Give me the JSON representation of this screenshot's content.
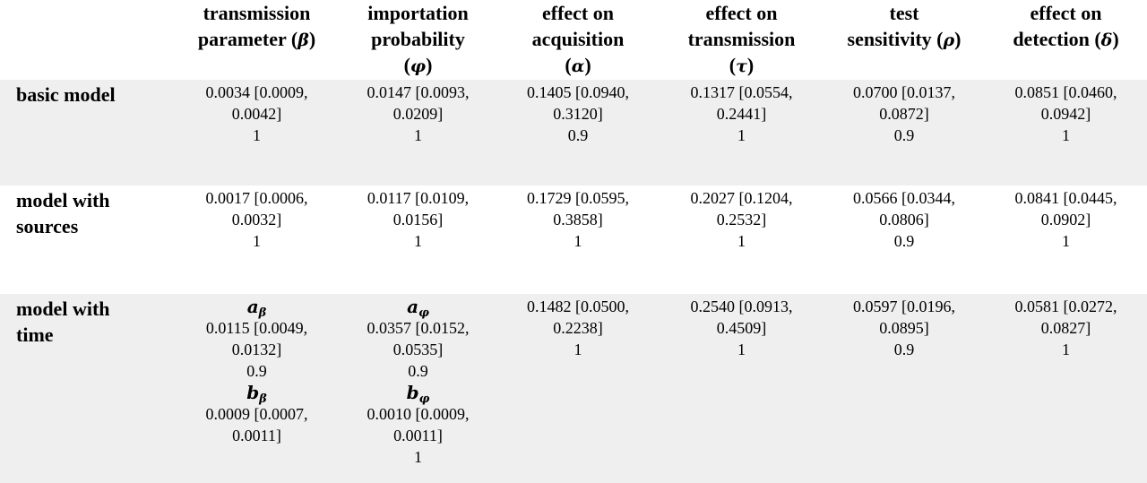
{
  "table": {
    "headers": [
      {
        "lines": [
          "transmission",
          "parameter ("
        ],
        "symbol": "β",
        "close": ")"
      },
      {
        "lines": [
          "importation",
          "probability"
        ],
        "symbol": "φ",
        "symbol_line": true
      },
      {
        "lines": [
          "effect on",
          "acquisition"
        ],
        "symbol": "α",
        "symbol_line": true
      },
      {
        "lines": [
          "effect on",
          "transmission"
        ],
        "symbol": "τ",
        "symbol_line": true
      },
      {
        "lines": [
          "test",
          "sensitivity ("
        ],
        "symbol": "ρ",
        "close": ")"
      },
      {
        "lines": [
          "effect on",
          "detection ("
        ],
        "symbol": "δ",
        "close": ")"
      }
    ],
    "rows": [
      {
        "label": [
          "basic model"
        ],
        "cells": [
          {
            "estimate": [
              "0.0034 [0.0009,",
              "0.0042]"
            ],
            "value": "1"
          },
          {
            "estimate": [
              "0.0147 [0.0093,",
              "0.0209]"
            ],
            "value": "1"
          },
          {
            "estimate": [
              "0.1405 [0.0940,",
              "0.3120]"
            ],
            "value": "0.9"
          },
          {
            "estimate": [
              "0.1317 [0.0554,",
              "0.2441]"
            ],
            "value": "1"
          },
          {
            "estimate": [
              "0.0700 [0.0137,",
              "0.0872]"
            ],
            "value": "0.9"
          },
          {
            "estimate": [
              "0.0851 [0.0460,",
              "0.0942]"
            ],
            "value": "1"
          }
        ]
      },
      {
        "label": [
          "model with",
          "sources"
        ],
        "cells": [
          {
            "estimate": [
              "0.0017 [0.0006,",
              "0.0032]"
            ],
            "value": "1"
          },
          {
            "estimate": [
              "0.0117 [0.0109,",
              "0.0156]"
            ],
            "value": "1"
          },
          {
            "estimate": [
              "0.1729 [0.0595,",
              "0.3858]"
            ],
            "value": "1"
          },
          {
            "estimate": [
              "0.2027 [0.1204,",
              "0.2532]"
            ],
            "value": "1"
          },
          {
            "estimate": [
              "0.0566 [0.0344,",
              "0.0806]"
            ],
            "value": "0.9"
          },
          {
            "estimate": [
              "0.0841 [0.0445,",
              "0.0902]"
            ],
            "value": "1"
          }
        ]
      },
      {
        "label": [
          "model with",
          "time"
        ],
        "time_cells": [
          {
            "a_base": "a",
            "a_sub": "β",
            "a_estimate": [
              "0.0115 [0.0049,",
              "0.0132]"
            ],
            "a_value": "0.9",
            "b_base": "b",
            "b_sub": "β",
            "b_estimate": [
              "0.0009 [0.0007,",
              "0.0011]"
            ],
            "b_value": ""
          },
          {
            "a_base": "a",
            "a_sub": "φ",
            "a_estimate": [
              "0.0357 [0.0152,",
              "0.0535]"
            ],
            "a_value": "0.9",
            "b_base": "b",
            "b_sub": "φ",
            "b_estimate": [
              "0.0010 [0.0009,",
              "0.0011]"
            ],
            "b_value": "1"
          }
        ],
        "cells": [
          {
            "estimate": [
              "0.1482 [0.0500,",
              "0.2238]"
            ],
            "value": "1"
          },
          {
            "estimate": [
              "0.2540 [0.0913,",
              "0.4509]"
            ],
            "value": "1"
          },
          {
            "estimate": [
              "0.0597 [0.0196,",
              "0.0895]"
            ],
            "value": "0.9"
          },
          {
            "estimate": [
              "0.0581 [0.0272,",
              "0.0827]"
            ],
            "value": "1"
          }
        ]
      }
    ]
  }
}
